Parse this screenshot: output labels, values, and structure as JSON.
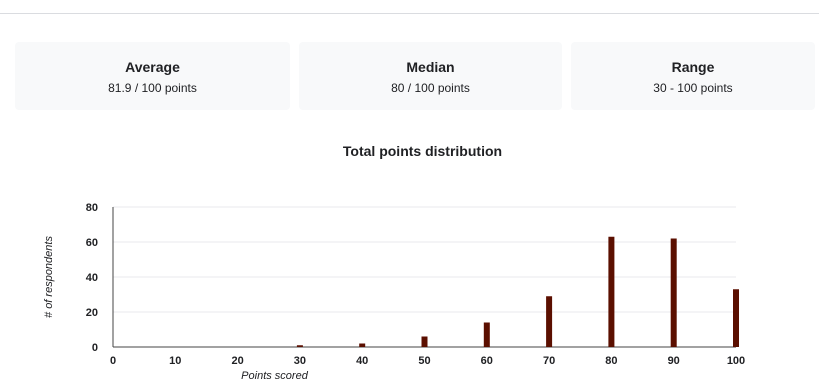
{
  "stats": {
    "average": {
      "label": "Average",
      "value": "81.9 / 100 points"
    },
    "median": {
      "label": "Median",
      "value": "80 / 100 points"
    },
    "range": {
      "label": "Range",
      "value": "30 - 100 points"
    }
  },
  "chart_data": {
    "type": "bar",
    "title": "Total points distribution",
    "xlabel": "Points scored",
    "ylabel": "# of respondents",
    "x": [
      30,
      40,
      50,
      60,
      70,
      80,
      90,
      100
    ],
    "values": [
      1,
      2,
      6,
      14,
      29,
      63,
      62,
      33
    ],
    "xlim": [
      0,
      100
    ],
    "ylim": [
      0,
      80
    ],
    "xticks": [
      0,
      10,
      20,
      30,
      40,
      50,
      60,
      70,
      80,
      90,
      100
    ],
    "yticks": [
      0,
      20,
      40,
      60,
      80
    ],
    "grid": true,
    "bar_color": "#5b0f00",
    "grid_color": "#e8eaed",
    "axis_color": "#444444"
  }
}
